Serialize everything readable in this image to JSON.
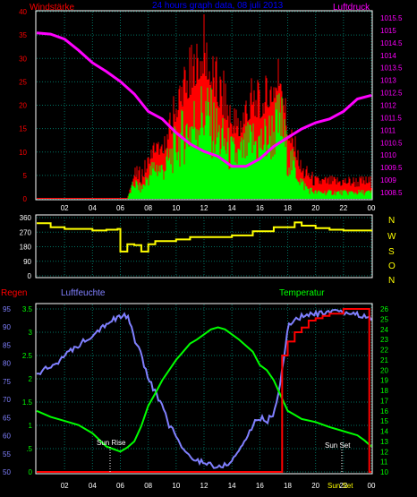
{
  "header": {
    "left_label": "Windstärke",
    "title": "24 hours graph data, 08 juli 2013",
    "right_label": "Luftdruck"
  },
  "lower_header": {
    "regen": "Regen",
    "luftfeuchte": "Luftfeuchte",
    "temperatur": "Temperatur"
  },
  "direction_letters": [
    "N",
    "W",
    "S",
    "O",
    "N"
  ],
  "annotations": {
    "sunrise": "Sun Rise",
    "sunset": "Sun Set",
    "footer": "Sun Set"
  },
  "colors": {
    "wind_avg": "#00ff00",
    "wind_gust": "#ff0000",
    "pressure": "#ff00ff",
    "direction": "#ffff00",
    "humidity": "#8080ff",
    "temperature": "#00ff00",
    "rain": "#ff0000",
    "grid": "#007060",
    "wind_axis": "#ff0000",
    "pressure_axis": "#ff00ff",
    "direction_axis": "#ffff00",
    "rain_axis": "#8080ff",
    "temp_axis": "#00ff00"
  },
  "chart_data": [
    {
      "type": "line",
      "name": "wind_pressure",
      "x_ticks": [
        "02",
        "04",
        "06",
        "08",
        "10",
        "12",
        "14",
        "16",
        "18",
        "20",
        "22",
        "00"
      ],
      "left_axis": {
        "label": "Windstärke",
        "ticks": [
          0,
          5,
          10,
          15,
          20,
          25,
          30,
          35,
          40
        ],
        "ylim": [
          0,
          40
        ]
      },
      "right_axis": {
        "label": "Luftdruck",
        "ticks": [
          "1008.5",
          "1009",
          "1009.5",
          "1010",
          "1010.5",
          "1011",
          "1011.5",
          "1012",
          "1012.5",
          "1013",
          "1013.5",
          "1014",
          "1014.5",
          "1015",
          "1015.5"
        ],
        "ylim": [
          1008.25,
          1015.75
        ]
      },
      "pressure": {
        "x": [
          0,
          1,
          2,
          3,
          4,
          5,
          6,
          7,
          8,
          9,
          10,
          11,
          12,
          13,
          14,
          15,
          16,
          17,
          18,
          19,
          20,
          21,
          22,
          23,
          24
        ],
        "y": [
          1014.9,
          1014.85,
          1014.65,
          1014.2,
          1013.7,
          1013.35,
          1012.95,
          1012.45,
          1011.75,
          1011.45,
          1010.9,
          1010.45,
          1010.15,
          1009.95,
          1009.55,
          1009.55,
          1009.85,
          1010.35,
          1010.7,
          1011.05,
          1011.3,
          1011.45,
          1011.75,
          1012.25,
          1012.4
        ]
      },
      "wind_average": {
        "x": [
          0,
          6.5,
          7,
          7.5,
          8,
          8.5,
          9,
          9.5,
          10,
          10.5,
          11,
          11.5,
          12,
          12.5,
          13,
          13.5,
          14,
          14.5,
          15,
          15.5,
          16,
          16.5,
          17,
          17.5,
          18,
          18.5,
          19,
          19.5,
          20,
          21,
          22,
          23,
          24
        ],
        "y": [
          0,
          0,
          5,
          3,
          7,
          10,
          9,
          12,
          17,
          20,
          22,
          25,
          27,
          24,
          20,
          17,
          14,
          13,
          16,
          18,
          17,
          19,
          21,
          25,
          13,
          10,
          5,
          3,
          2,
          2,
          2,
          2,
          2
        ]
      },
      "wind_gust": {
        "x": [
          0,
          6.5,
          7,
          7.5,
          8,
          8.5,
          9,
          9.5,
          10,
          10.5,
          11,
          11.5,
          12,
          12.5,
          13,
          13.5,
          14,
          14.5,
          15,
          15.5,
          16,
          16.5,
          17,
          17.5,
          18,
          18.5,
          19,
          19.5,
          20,
          21,
          22,
          23,
          24
        ],
        "y": [
          0,
          0,
          7,
          7,
          10,
          14,
          12,
          18,
          26,
          30,
          33,
          35,
          40,
          34,
          30,
          27,
          22,
          20,
          25,
          27,
          25,
          27,
          32,
          34,
          18,
          14,
          8,
          7,
          5,
          5,
          5,
          5,
          5
        ]
      }
    },
    {
      "type": "line",
      "name": "wind_direction",
      "yticks": [
        0,
        90,
        180,
        270,
        360
      ],
      "ylim": [
        0,
        360
      ],
      "direction": {
        "x": [
          0,
          1,
          2,
          3,
          4,
          5,
          5.8,
          6,
          6.5,
          7,
          7.5,
          8,
          8.5,
          9,
          10,
          11,
          12,
          13,
          14,
          15,
          15.5,
          16,
          17,
          18,
          18.5,
          19,
          20,
          21,
          22,
          23,
          24
        ],
        "y": [
          325,
          300,
          290,
          290,
          280,
          285,
          290,
          150,
          195,
          190,
          150,
          195,
          215,
          215,
          225,
          240,
          240,
          240,
          250,
          250,
          275,
          275,
          300,
          300,
          330,
          310,
          295,
          285,
          280,
          280,
          285
        ]
      }
    },
    {
      "type": "line",
      "name": "rain_humidity_temperature",
      "x_ticks": [
        "02",
        "04",
        "06",
        "08",
        "10",
        "12",
        "14",
        "16",
        "18",
        "20",
        "22",
        "00"
      ],
      "rain_axis": {
        "label": "Regen",
        "ticks": [
          "0",
          ".5",
          "1",
          "1.5",
          "2",
          "2.5",
          "3",
          "3.5"
        ],
        "ylim": [
          0,
          3.5
        ]
      },
      "humidity_axis": {
        "label": "Luftfeuchte",
        "ticks": [
          50,
          55,
          60,
          65,
          70,
          75,
          80,
          85,
          90,
          95
        ],
        "ylim": [
          50,
          95
        ]
      },
      "temperature_axis": {
        "label": "Temperatur",
        "ticks": [
          10,
          11,
          12,
          13,
          14,
          15,
          16,
          17,
          18,
          19,
          20,
          21,
          22,
          23,
          24,
          25,
          26
        ],
        "ylim": [
          10,
          26
        ]
      },
      "humidity": {
        "x": [
          0,
          1,
          2,
          3,
          4,
          5,
          6,
          6.5,
          7,
          7.5,
          8,
          8.5,
          9,
          9.5,
          10,
          10.5,
          11,
          11.5,
          12,
          12.5,
          13,
          13.5,
          14,
          14.5,
          15,
          15.5,
          16,
          16.5,
          17,
          17.5,
          18,
          18.5,
          19,
          20,
          21,
          22,
          23,
          23.5,
          24
        ],
        "y": [
          77,
          79,
          82,
          85,
          88,
          91,
          93,
          93,
          87,
          82,
          76,
          72,
          68,
          63,
          60,
          56,
          54,
          53,
          53,
          52,
          51,
          52,
          53,
          56,
          59,
          63,
          65,
          64,
          66,
          75,
          90,
          92,
          93,
          93.5,
          94,
          94,
          93.5,
          93,
          92
        ]
      },
      "temperature": {
        "x": [
          0,
          1,
          2,
          3,
          4,
          5,
          6,
          6.5,
          7,
          7.5,
          8,
          8.5,
          9,
          9.5,
          10,
          10.5,
          11,
          11.5,
          12,
          12.5,
          13,
          13.5,
          14,
          14.5,
          15,
          15.5,
          16,
          16.5,
          17,
          17.5,
          18,
          18.5,
          19,
          20,
          21,
          22,
          23,
          23.5,
          24
        ],
        "y": [
          16,
          15.4,
          15,
          14.6,
          13.8,
          12.5,
          12,
          12.4,
          13,
          14.5,
          16.5,
          17.7,
          19,
          20,
          21,
          21.8,
          22.6,
          23,
          23.5,
          24,
          24.2,
          24,
          23.5,
          23,
          22.4,
          21.8,
          20.5,
          20,
          19,
          17.5,
          16,
          15.6,
          15.2,
          14.9,
          14.4,
          14,
          13.6,
          13.1,
          12.5
        ]
      },
      "rain": {
        "x": [
          0,
          17.5,
          17.6,
          18,
          18.5,
          19,
          19.5,
          20,
          20.5,
          21,
          22,
          23,
          23.8,
          23.85,
          24
        ],
        "y": [
          0,
          0,
          2.5,
          2.8,
          3.0,
          3.1,
          3.25,
          3.3,
          3.35,
          3.4,
          3.5,
          3.5,
          3.5,
          0,
          0
        ]
      }
    }
  ]
}
